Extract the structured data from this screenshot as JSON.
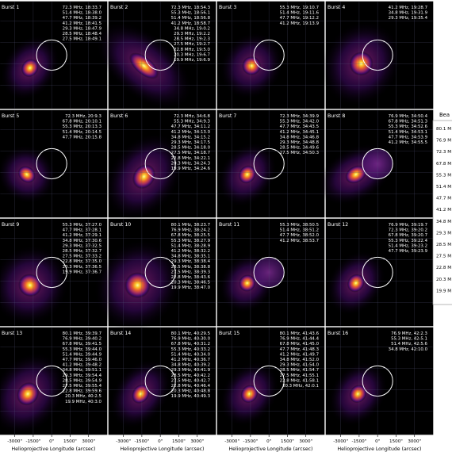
{
  "chart_data": {
    "type": "image_grid",
    "xlabel": "Helioprojective Longitude (arcsec)",
    "x_ticks": [
      "-3000\"",
      "-1500\"",
      "0\"",
      "1500\"",
      "3000\""
    ],
    "x_tick_values": [
      -3000,
      -1500,
      0,
      1500,
      3000
    ],
    "grid": true,
    "panels": [
      {
        "title": "Burst 1",
        "lines": [
          "72.3 MHz, 18:33.7",
          "51.4 MHz, 18:38.0",
          "47.7 MHz, 18:39.2",
          "41.2 MHz, 18:41.5",
          "29.3 MHz, 18:47.9",
          "28.5 MHz, 18:48.4",
          "27.5 MHz, 18:49.1"
        ]
      },
      {
        "title": "Burst 2",
        "lines": [
          "72.3 MHz, 18:54.3",
          "55.3 MHz, 18:56.1",
          "51.4 MHz, 18:56.8",
          "41.2 MHz, 18:58.7",
          "34.8 MHz, 19:0.2",
          "29.3 MHz, 19:2.2",
          "28.5 MHz, 19:2.3",
          "27.5 MHz, 19:2.7",
          "22.8 MHz, 19:5.0",
          "20.3 MHz, 19:6.7",
          "19.9 MHz, 19:6.9"
        ]
      },
      {
        "title": "Burst 3",
        "lines": [
          "55.3 MHz, 19:10.7",
          "51.4 MHz, 19:11.6",
          "47.7 MHz, 19:12.2",
          "41.2 MHz, 19:13.9"
        ]
      },
      {
        "title": "Burst 4",
        "lines": [
          "41.2 MHz, 19:28.7",
          "34.8 MHz, 19:31.9",
          "29.3 MHz, 19:35.4"
        ]
      },
      {
        "title": "Burst 5",
        "lines": [
          "72.3 MHz, 20:9.3",
          "67.8 MHz, 20:10.1",
          "55.3 MHz, 20:13.3",
          "51.4 MHz, 20:14.5",
          "47.7 MHz, 20:15.8"
        ]
      },
      {
        "title": "Burst 6",
        "lines": [
          "72.3 MHz, 34:6.8",
          "55.3 MHz, 34:9.3",
          "47.7 MHz, 34:11.2",
          "41.2 MHz, 34:13.0",
          "34.8 MHz, 34:15.2",
          "29.3 MHz, 34:17.5",
          "28.5 MHz, 34:18.0",
          "27.5 MHz, 34:18.7",
          "22.8 MHz, 34:22.1",
          "20.3 MHz, 34:24.3",
          "19.9 MHz, 34:24.6"
        ]
      },
      {
        "title": "Burst 7",
        "lines": [
          "72.3 MHz, 34:39.9",
          "55.3 MHz, 34:42.0",
          "47.7 MHz, 34:43.5",
          "41.2 MHz, 34:45.1",
          "34.8 MHz, 34:46.8",
          "29.3 MHz, 34:48.8",
          "28.5 MHz, 34:49.6",
          "27.5 MHz, 34:50.3"
        ]
      },
      {
        "title": "Burst 8",
        "lines": [
          "76.9 MHz, 34:50.4",
          "67.8 MHz, 34:51.3",
          "55.3 MHz, 34:52.6",
          "51.4 MHz, 34:53.1",
          "47.7 MHz, 34:53.9",
          "41.2 MHz, 34:55.5"
        ]
      },
      {
        "title": "Burst 9",
        "lines": [
          "55.3 MHz, 37:27.0",
          "47.7 MHz, 37:28.1",
          "41.2 MHz, 37:29.1",
          "34.8 MHz, 37:30.6",
          "29.3 MHz, 37:32.5",
          "28.5 MHz, 37:32.7",
          "27.5 MHz, 37:33.2",
          "22.8 MHz, 37:35.0",
          "20.3 MHz, 37:36.5",
          "19.9 MHz, 37:36.7"
        ]
      },
      {
        "title": "Burst 10",
        "lines": [
          "80.1 MHz, 38:23.7",
          "76.9 MHz, 38:24.2",
          "67.8 MHz, 38:25.5",
          "55.3 MHz, 38:27.9",
          "51.4 MHz, 38:28.9",
          "41.2 MHz, 38:32.2",
          "34.8 MHz, 38:35.1",
          "29.3 MHz, 38:38.4",
          "28.5 MHz, 38:38.8",
          "27.5 MHz, 38:39.3",
          "22.8 MHz, 38:43.6",
          "20.3 MHz, 38:46.5",
          "19.9 MHz, 38:47.0"
        ]
      },
      {
        "title": "Burst 11",
        "lines": [
          "55.3 MHz, 38:50.5",
          "51.4 MHz, 38:51.2",
          "47.7 MHz, 38:52.0",
          "41.2 MHz, 38:53.7"
        ]
      },
      {
        "title": "Burst 12",
        "lines": [
          "76.9 MHz, 39:19.7",
          "72.3 MHz, 39:20.2",
          "67.8 MHz, 39:20.7",
          "55.3 MHz, 39:22.4",
          "51.4 MHz, 39:23.2",
          "47.7 MHz, 39:23.9"
        ]
      },
      {
        "title": "Burst 13",
        "lines": [
          "80.1 MHz, 39:39.7",
          "76.9 MHz, 39:40.2",
          "67.8 MHz, 39:41.5",
          "55.3 MHz, 39:44.0",
          "51.4 MHz, 39:44.9",
          "47.7 MHz, 39:46.0",
          "41.2 MHz, 39:48.2",
          "34.8 MHz, 39:51.1",
          "29.3 MHz, 39:54.4",
          "28.5 MHz, 39:54.9",
          "27.5 MHz, 39:55.4",
          "22.8 MHz, 39:59.6",
          "20.3 MHz, 40:2.5",
          "19.9 MHz, 40:3.0"
        ]
      },
      {
        "title": "Burst 14",
        "lines": [
          "80.1 MHz, 40:29.5",
          "76.9 MHz, 40:30.0",
          "67.8 MHz, 40:31.2",
          "55.3 MHz, 40:33.2",
          "51.4 MHz, 40:34.0",
          "41.2 MHz, 40:36.7",
          "34.8 MHz, 40:39.2",
          "29.3 MHz, 40:41.9",
          "28.5 MHz, 40:42.2",
          "27.5 MHz, 40:42.7",
          "22.8 MHz, 40:46.4",
          "20.3 MHz, 40:48.8",
          "19.9 MHz, 40:49.3"
        ]
      },
      {
        "title": "Burst 15",
        "lines": [
          "80.1 MHz, 41:43.6",
          "76.9 MHz, 41:44.4",
          "67.8 MHz, 41:45.0",
          "47.7 MHz, 41:48.3",
          "41.2 MHz, 41:49.7",
          "34.8 MHz, 41:52.0",
          "29.3 MHz, 41:54.0",
          "28.5 MHz, 41:54.7",
          "27.5 MHz, 41:55.1",
          "22.8 MHz, 41:58.1",
          "20.3 MHz, 42:0.1"
        ]
      },
      {
        "title": "Burst 16",
        "lines": [
          "76.9 MHz, 42:2.3",
          "55.3 MHz, 42:5.1",
          "51.4 MHz, 42:5.6",
          "34.8 MHz, 42:10.0"
        ]
      }
    ],
    "legend": {
      "title": "Bea",
      "entries": [
        "80.1 M",
        "76.9 M",
        "72.3 M",
        "67.8 M",
        "55.3 M",
        "51.4 M",
        "47.7 M",
        "41.2 M",
        "34.8 M",
        "29.3 M",
        "28.5 M",
        "27.5 M",
        "22.8 M",
        "20.3 M",
        "19.9 M"
      ]
    }
  },
  "colors": {
    "background": "#000000",
    "text": "#ffffff",
    "grid": "#55557a",
    "colormap": "inferno",
    "circle": "#ffffff"
  }
}
